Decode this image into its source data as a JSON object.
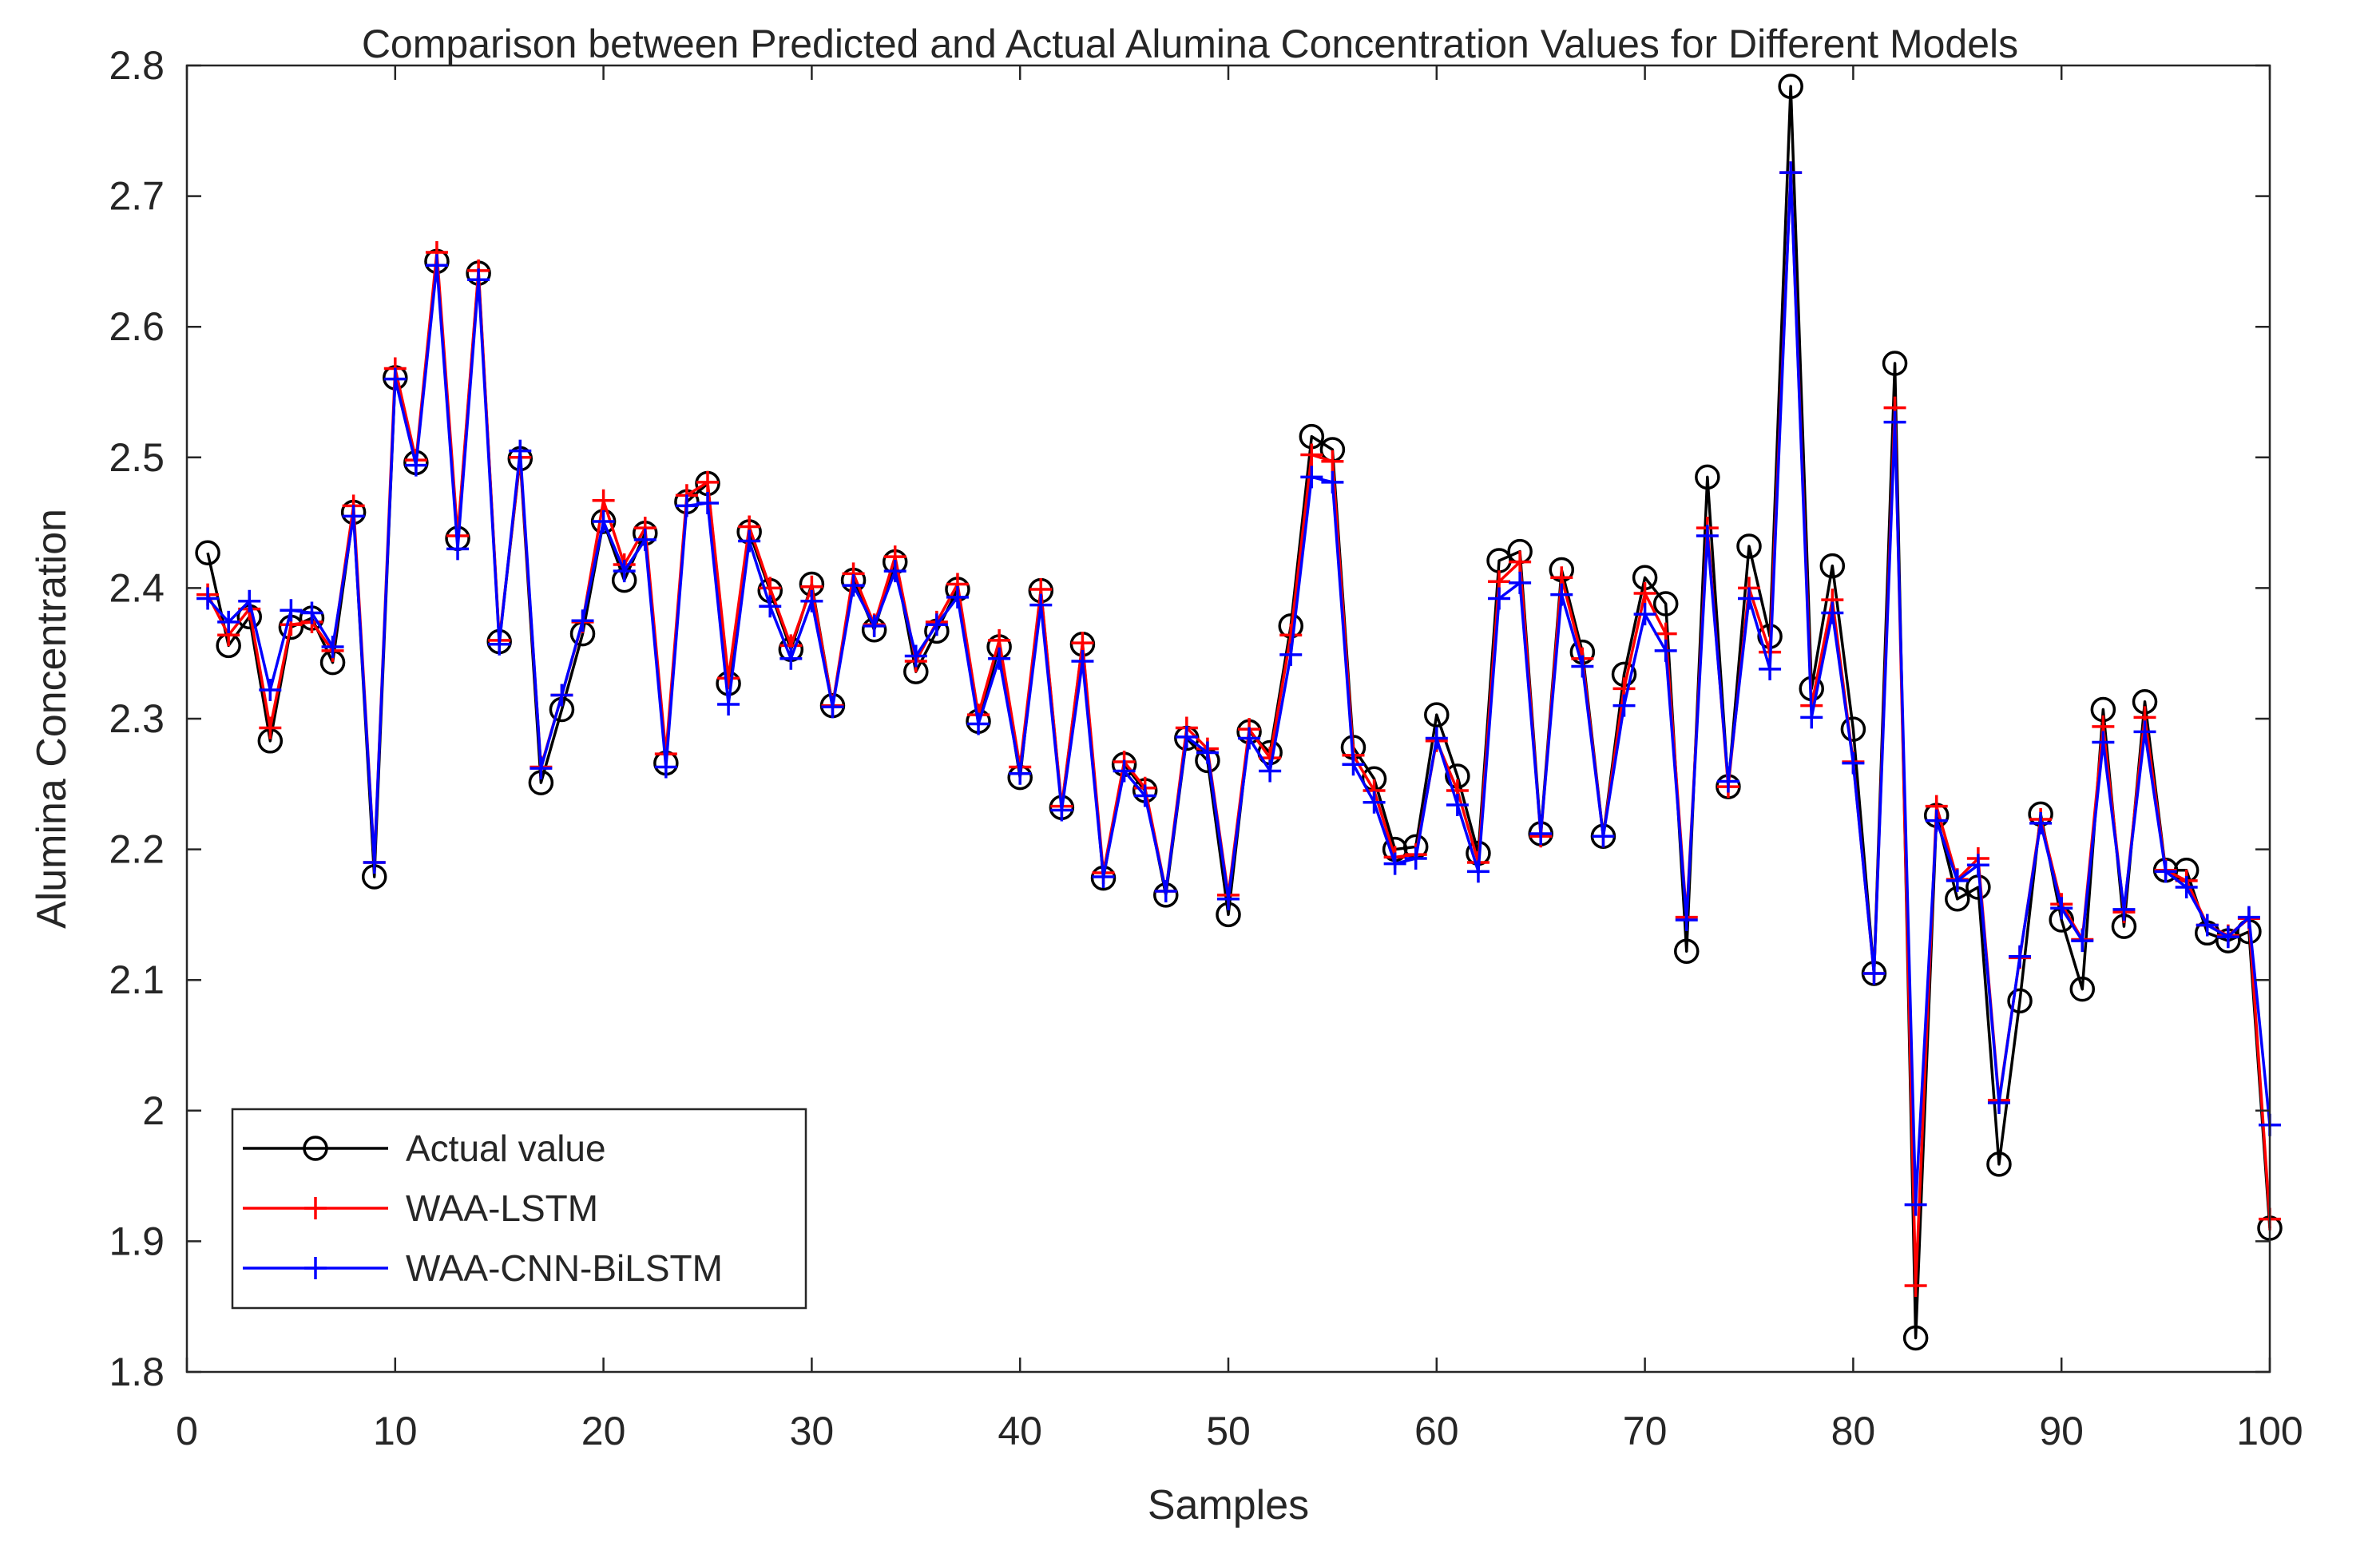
{
  "chart_data": {
    "type": "line",
    "title": "Comparison between Predicted and Actual Alumina Concentration Values for Different Models",
    "xlabel": "Samples",
    "ylabel": "Alumina Concentration",
    "xlim": [
      0,
      100
    ],
    "ylim": [
      1.8,
      2.8
    ],
    "xticks": [
      0,
      10,
      20,
      30,
      40,
      50,
      60,
      70,
      80,
      90,
      100
    ],
    "xtick_labels": [
      "0",
      "10",
      "20",
      "30",
      "40",
      "50",
      "60",
      "70",
      "80",
      "90",
      "100"
    ],
    "yticks": [
      1.8,
      1.9,
      2.0,
      2.1,
      2.2,
      2.3,
      2.4,
      2.5,
      2.6,
      2.7,
      2.8
    ],
    "ytick_labels": [
      "1.8",
      "1.9",
      "2",
      "2.1",
      "2.2",
      "2.3",
      "2.4",
      "2.5",
      "2.6",
      "2.7",
      "2.8"
    ],
    "grid": false,
    "legend_position": "bottom-left",
    "x": [
      1,
      2,
      3,
      4,
      5,
      6,
      7,
      8,
      9,
      10,
      11,
      12,
      13,
      14,
      15,
      16,
      17,
      18,
      19,
      20,
      21,
      22,
      23,
      24,
      25,
      26,
      27,
      28,
      29,
      30,
      31,
      32,
      33,
      34,
      35,
      36,
      37,
      38,
      39,
      40,
      41,
      42,
      43,
      44,
      45,
      46,
      47,
      48,
      49,
      50,
      51,
      52,
      53,
      54,
      55,
      56,
      57,
      58,
      59,
      60,
      61,
      62,
      63,
      64,
      65,
      66,
      67,
      68,
      69,
      70,
      71,
      72,
      73,
      74,
      75,
      76,
      77,
      78,
      79,
      80,
      81,
      82,
      83,
      84,
      85,
      86,
      87,
      88,
      89,
      90,
      91,
      92,
      93,
      94,
      95,
      96,
      97,
      98,
      99,
      100
    ],
    "series": [
      {
        "name": "Actual value",
        "color": "#000000",
        "marker": "circle",
        "values": [
          2.427,
          2.356,
          2.378,
          2.283,
          2.37,
          2.377,
          2.343,
          2.458,
          2.179,
          2.561,
          2.496,
          2.65,
          2.438,
          2.641,
          2.359,
          2.499,
          2.251,
          2.307,
          2.365,
          2.451,
          2.406,
          2.442,
          2.266,
          2.466,
          2.48,
          2.327,
          2.443,
          2.398,
          2.353,
          2.403,
          2.31,
          2.406,
          2.368,
          2.42,
          2.336,
          2.367,
          2.399,
          2.298,
          2.355,
          2.255,
          2.398,
          2.232,
          2.357,
          2.178,
          2.265,
          2.245,
          2.165,
          2.285,
          2.268,
          2.15,
          2.29,
          2.274,
          2.371,
          2.516,
          2.506,
          2.278,
          2.254,
          2.2,
          2.202,
          2.303,
          2.256,
          2.197,
          2.421,
          2.428,
          2.212,
          2.414,
          2.351,
          2.21,
          2.334,
          2.408,
          2.388,
          2.122,
          2.485,
          2.248,
          2.432,
          2.363,
          2.784,
          2.323,
          2.417,
          2.292,
          2.105,
          2.572,
          1.826,
          2.226,
          2.162,
          2.171,
          1.959,
          2.084,
          2.227,
          2.146,
          2.093,
          2.307,
          2.141,
          2.313,
          2.184,
          2.184,
          2.136,
          2.13,
          2.137,
          1.91
        ]
      },
      {
        "name": "WAA-LSTM",
        "color": "#ff0000",
        "marker": "plus",
        "values": [
          2.395,
          2.364,
          2.384,
          2.293,
          2.372,
          2.374,
          2.352,
          2.463,
          2.19,
          2.568,
          2.498,
          2.657,
          2.44,
          2.643,
          2.36,
          2.5,
          2.263,
          2.318,
          2.374,
          2.467,
          2.418,
          2.446,
          2.273,
          2.471,
          2.481,
          2.331,
          2.447,
          2.4,
          2.356,
          2.401,
          2.31,
          2.411,
          2.372,
          2.424,
          2.344,
          2.374,
          2.403,
          2.303,
          2.36,
          2.263,
          2.399,
          2.233,
          2.358,
          2.182,
          2.267,
          2.247,
          2.168,
          2.293,
          2.277,
          2.165,
          2.292,
          2.27,
          2.364,
          2.502,
          2.497,
          2.272,
          2.245,
          2.194,
          2.196,
          2.283,
          2.245,
          2.19,
          2.405,
          2.42,
          2.21,
          2.408,
          2.346,
          2.21,
          2.323,
          2.396,
          2.365,
          2.148,
          2.446,
          2.248,
          2.4,
          2.351,
          2.718,
          2.31,
          2.391,
          2.267,
          2.105,
          2.538,
          1.866,
          2.233,
          2.177,
          2.193,
          2.008,
          2.117,
          2.223,
          2.158,
          2.131,
          2.294,
          2.152,
          2.301,
          2.184,
          2.176,
          2.142,
          2.134,
          2.147,
          1.917
        ]
      },
      {
        "name": "WAA-CNN-BiLSTM",
        "color": "#0000ff",
        "marker": "plus",
        "values": [
          2.392,
          2.374,
          2.39,
          2.322,
          2.383,
          2.381,
          2.355,
          2.455,
          2.19,
          2.56,
          2.494,
          2.647,
          2.43,
          2.636,
          2.357,
          2.505,
          2.262,
          2.318,
          2.375,
          2.451,
          2.413,
          2.437,
          2.263,
          2.463,
          2.465,
          2.311,
          2.436,
          2.386,
          2.346,
          2.39,
          2.309,
          2.402,
          2.371,
          2.413,
          2.348,
          2.372,
          2.393,
          2.296,
          2.346,
          2.258,
          2.387,
          2.23,
          2.344,
          2.179,
          2.26,
          2.241,
          2.168,
          2.286,
          2.274,
          2.162,
          2.285,
          2.26,
          2.349,
          2.485,
          2.481,
          2.265,
          2.236,
          2.189,
          2.193,
          2.285,
          2.234,
          2.183,
          2.392,
          2.404,
          2.212,
          2.395,
          2.34,
          2.21,
          2.31,
          2.38,
          2.352,
          2.146,
          2.44,
          2.252,
          2.392,
          2.338,
          2.718,
          2.301,
          2.381,
          2.266,
          2.105,
          2.527,
          1.928,
          2.222,
          2.176,
          2.188,
          2.006,
          2.118,
          2.22,
          2.155,
          2.13,
          2.282,
          2.154,
          2.29,
          2.183,
          2.171,
          2.142,
          2.133,
          2.148,
          1.989
        ]
      }
    ]
  }
}
